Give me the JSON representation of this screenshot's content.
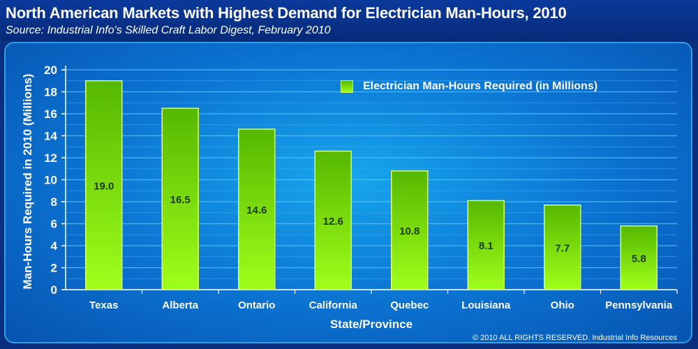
{
  "title": "North American Markets with Highest Demand for Electrician Man-Hours, 2010",
  "subtitle": "Source: Industrial Info's Skilled Craft Labor Digest, February 2010",
  "copyright": "© 2010 ALL RIGHTS RESERVED. Industrial Info Resources",
  "colors": {
    "background": "#0a2f7e",
    "plot": "#1190e0",
    "bar_top": "#55b800",
    "bar_bottom": "#a0ff1a",
    "text": "#ffffff"
  },
  "chart_data": {
    "type": "bar",
    "title": "North American Markets with Highest Demand for Electrician Man-Hours, 2010",
    "xlabel": "State/Province",
    "ylabel": "Man-Hours Required in 2010 (Millions)",
    "categories": [
      "Texas",
      "Alberta",
      "Ontario",
      "California",
      "Quebec",
      "Louisiana",
      "Ohio",
      "Pennsylvania"
    ],
    "series": [
      {
        "name": "Electrician Man-Hours Required (in Millions)",
        "values": [
          19.0,
          16.5,
          14.6,
          12.6,
          10.8,
          8.1,
          7.7,
          5.8
        ]
      }
    ],
    "data_labels": [
      "19.0",
      "16.5",
      "14.6",
      "12.6",
      "10.8",
      "8.1",
      "7.7",
      "5.8"
    ],
    "ylim": [
      0,
      20
    ],
    "yticks": [
      0,
      2,
      4,
      6,
      8,
      10,
      12,
      14,
      16,
      18,
      20
    ],
    "grid": true,
    "legend_position": "top-right"
  }
}
